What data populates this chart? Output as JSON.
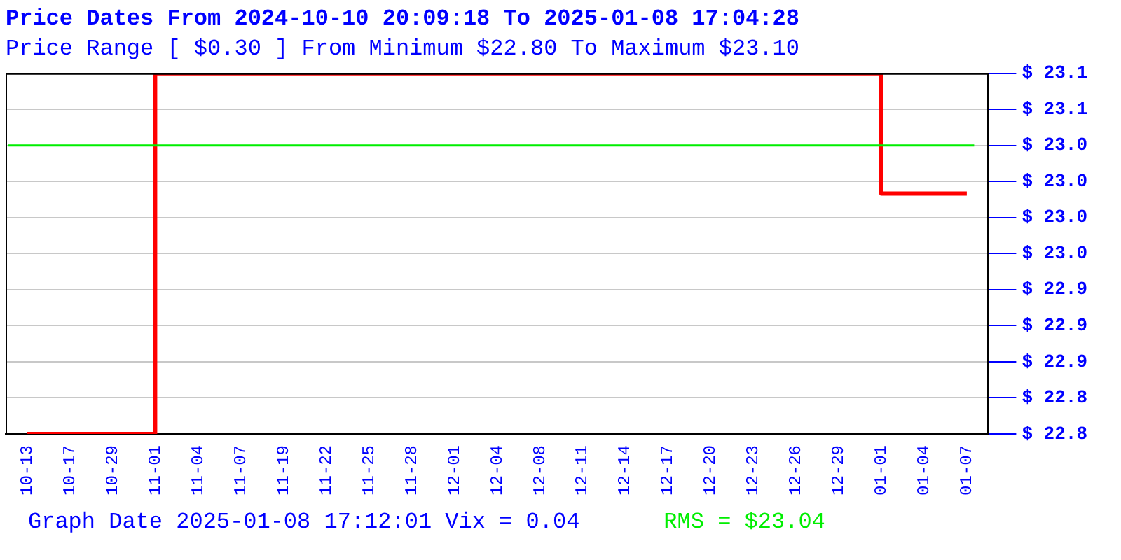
{
  "chart_data": {
    "type": "step",
    "title": "Price Dates From 2024-10-10 20:09:18 To 2025-01-08 17:04:28",
    "subtitle": "Price Range [ $0.30 ] From Minimum $22.80 To Maximum $23.10",
    "categories": [
      "10-13",
      "10-17",
      "10-29",
      "11-01",
      "11-04",
      "11-07",
      "11-19",
      "11-22",
      "11-25",
      "11-28",
      "12-01",
      "12-04",
      "12-08",
      "12-11",
      "12-14",
      "12-17",
      "12-20",
      "12-23",
      "12-26",
      "12-29",
      "01-01",
      "01-04",
      "01-07"
    ],
    "series": [
      {
        "color": "#ff0000",
        "values": [
          22.8,
          22.8,
          22.8,
          23.1,
          23.1,
          23.1,
          23.1,
          23.1,
          23.1,
          23.1,
          23.1,
          23.1,
          23.1,
          23.1,
          23.1,
          23.1,
          23.1,
          23.1,
          23.1,
          23.1,
          23.0,
          23.0,
          23.0
        ]
      }
    ],
    "ylim": [
      22.8,
      23.1
    ],
    "yticks": [
      {
        "value": 22.8,
        "label": "$ 22.8"
      },
      {
        "value": 22.83,
        "label": "$ 22.8"
      },
      {
        "value": 22.86,
        "label": "$ 22.9"
      },
      {
        "value": 22.89,
        "label": "$ 22.9"
      },
      {
        "value": 22.92,
        "label": "$ 22.9"
      },
      {
        "value": 22.95,
        "label": "$ 23.0"
      },
      {
        "value": 22.98,
        "label": "$ 23.0"
      },
      {
        "value": 23.01,
        "label": "$ 23.0"
      },
      {
        "value": 23.04,
        "label": "$ 23.0"
      },
      {
        "value": 23.07,
        "label": "$ 23.1"
      },
      {
        "value": 23.1,
        "label": "$ 23.1"
      }
    ],
    "ref_lines": [
      {
        "axis": "y",
        "value": 23.04,
        "label": "RMS = $23.04",
        "color": "#00ee00"
      }
    ],
    "annotations": [
      "Graph Date 2025-01-08 17:12:01 Vix = 0.04"
    ],
    "grid": "y",
    "legend": false,
    "marker": "none",
    "line_style": "solid"
  }
}
